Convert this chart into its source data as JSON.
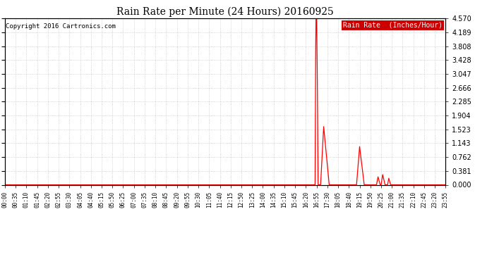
{
  "title": "Rain Rate per Minute (24 Hours) 20160925",
  "copyright": "Copyright 2016 Cartronics.com",
  "legend_label": "Rain Rate  (Inches/Hour)",
  "y_ticks": [
    0.0,
    0.381,
    0.762,
    1.143,
    1.523,
    1.904,
    2.285,
    2.666,
    3.047,
    3.428,
    3.808,
    4.189,
    4.57
  ],
  "ylim": [
    0.0,
    4.57
  ],
  "line_color": "#ff0000",
  "bg_color": "#ffffff",
  "plot_bg_color": "#ffffff",
  "grid_color": "#aaaaaa",
  "title_color": "#000000",
  "copyright_color": "#000000",
  "figsize": [
    6.9,
    3.75
  ],
  "dpi": 100
}
